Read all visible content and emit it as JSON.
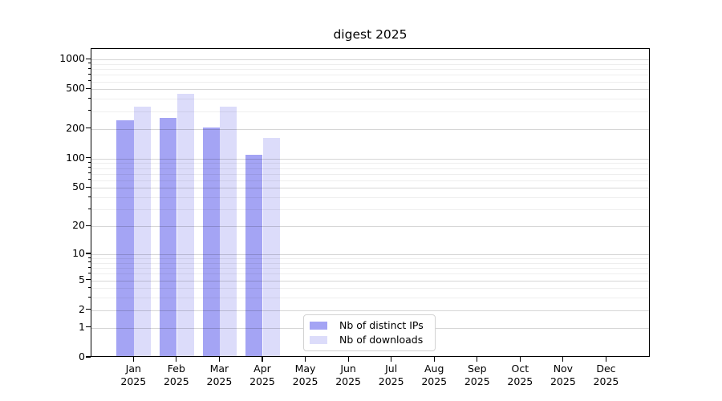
{
  "chart_data": {
    "type": "bar",
    "title": "digest 2025",
    "year_label": "2025",
    "categories": [
      "Jan",
      "Feb",
      "Mar",
      "Apr",
      "May",
      "Jun",
      "Jul",
      "Aug",
      "Sep",
      "Oct",
      "Nov",
      "Dec"
    ],
    "series": [
      {
        "name": "Nb of distinct IPs",
        "color": "#a4a4f4",
        "values": [
          235,
          250,
          200,
          105,
          0,
          0,
          0,
          0,
          0,
          0,
          0,
          0
        ]
      },
      {
        "name": "Nb of downloads",
        "color": "#dcdcfa",
        "values": [
          325,
          435,
          325,
          155,
          0,
          0,
          0,
          0,
          0,
          0,
          0,
          0
        ]
      }
    ],
    "xlabel": "",
    "ylabel": "",
    "yscale": "log1p",
    "ylim": [
      0,
      1300
    ],
    "yticks": [
      0,
      1,
      2,
      5,
      10,
      20,
      50,
      100,
      200,
      500,
      1000
    ],
    "minor_gridlines": [
      3,
      4,
      6,
      7,
      8,
      9,
      30,
      40,
      60,
      70,
      80,
      90,
      300,
      400,
      600,
      700,
      800,
      900
    ],
    "grid": "on, drawn above bars",
    "legend_position": "inside bottom, left of center",
    "colors": {
      "axis": "#000000",
      "text": "#000000",
      "grid_major": "rgba(0,0,0,0.16)",
      "grid_minor": "rgba(0,0,0,0.065)",
      "background": "#ffffff",
      "legend_border": "#d2d2d2"
    }
  }
}
